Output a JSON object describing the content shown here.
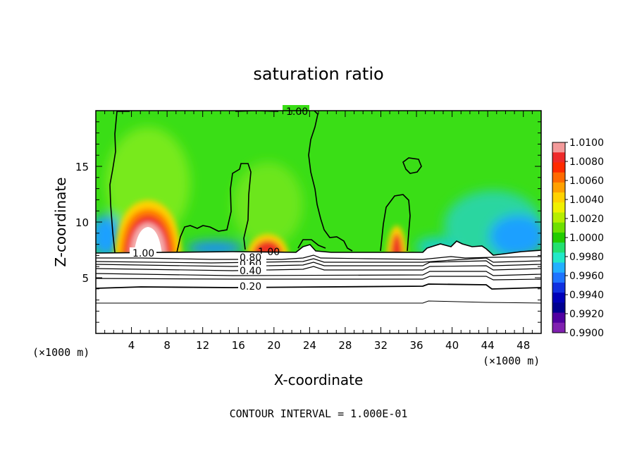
{
  "chart_data": {
    "type": "contour",
    "title": "saturation ratio",
    "xlabel": "X-coordinate",
    "ylabel": "Z-coordinate",
    "x_unit": "(×1000 m)",
    "xlim": [
      0,
      50
    ],
    "ylim": [
      0,
      20
    ],
    "x_ticks": [
      "4",
      "8",
      "12",
      "16",
      "20",
      "24",
      "28",
      "32",
      "36",
      "40",
      "44",
      "48"
    ],
    "y_ticks": [
      "5",
      "10",
      "15"
    ],
    "colorbar": {
      "labels": [
        "1.0100",
        "1.0080",
        "1.0060",
        "1.0040",
        "1.0020",
        "1.0000",
        "0.9980",
        "0.9960",
        "0.9940",
        "0.9920",
        "0.9900"
      ],
      "colors": [
        "#f39a9a",
        "#ee2a2a",
        "#ff2b00",
        "#ff6a00",
        "#ffa000",
        "#ffd200",
        "#f0f000",
        "#b6ee00",
        "#6ee000",
        "#22cc00",
        "#22e070",
        "#22e8c8",
        "#22b0ff",
        "#1f74ff",
        "#1030e0",
        "#0000b8",
        "#000090",
        "#5000a0",
        "#8020b0"
      ]
    },
    "contour_labels": [
      "1.00",
      "1.00",
      "1.00",
      "0.80",
      "0.60",
      "0.40",
      "0.20"
    ],
    "footer": "CONTOUR INTERVAL = 1.000E-01"
  }
}
